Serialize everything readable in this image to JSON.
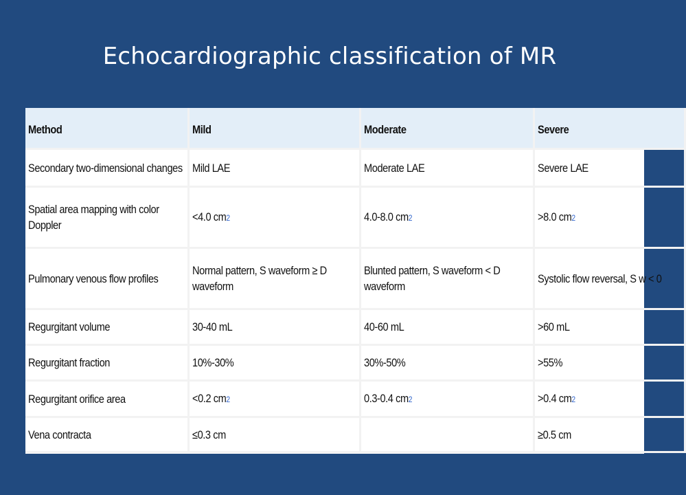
{
  "slide": {
    "title": "Echocardiographic classification of MR"
  },
  "table": {
    "headers": [
      "Method",
      "Mild",
      "Moderate",
      "Severe"
    ],
    "rows": [
      {
        "method": "Secondary two-dimensional changes",
        "mild": "Mild LAE",
        "moderate": "Moderate LAE",
        "severe": "Severe LAE"
      },
      {
        "method": "Spatial area mapping with color Doppler",
        "mild": "<4.0 cm",
        "mild_sup": "2",
        "moderate": "4.0-8.0 cm",
        "moderate_sup": "2",
        "severe": ">8.0 cm",
        "severe_sup": "2"
      },
      {
        "method": "Pulmonary venous flow profiles",
        "mild": "Normal pattern, S waveform ≥ D waveform",
        "moderate": "Blunted pattern, S waveform < D waveform",
        "severe": "Systolic flow reversal, S w < 0"
      },
      {
        "method": "Regurgitant volume",
        "mild": "30-40 mL",
        "moderate": "40-60 mL",
        "severe": ">60 mL"
      },
      {
        "method": "Regurgitant fraction",
        "mild": "10%-30%",
        "moderate": "30%-50%",
        "severe": ">55%"
      },
      {
        "method": "Regurgitant orifice area",
        "mild": "<0.2 cm",
        "mild_sup": "2",
        "moderate": "0.3-0.4 cm",
        "moderate_sup": "2",
        "severe": ">0.4 cm",
        "severe_sup": "2"
      },
      {
        "method": "Vena contracta",
        "mild": "≤0.3 cm",
        "moderate": "",
        "severe": "≥0.5 cm"
      }
    ]
  }
}
